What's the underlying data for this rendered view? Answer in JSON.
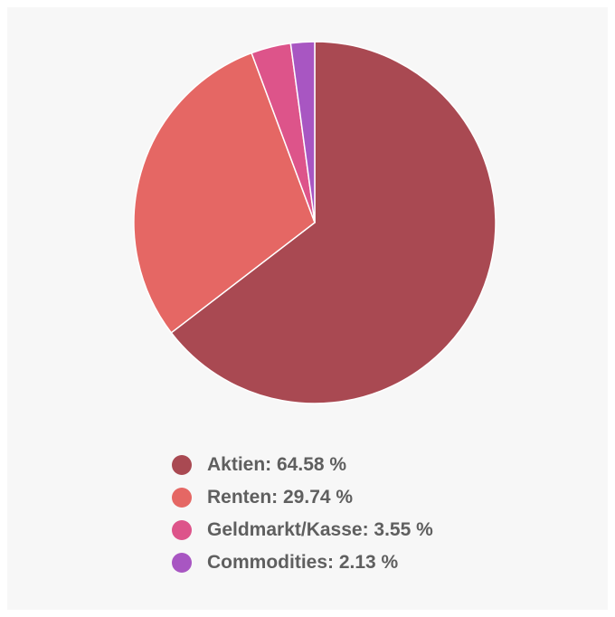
{
  "chart_data": {
    "type": "pie",
    "title": "",
    "legend_position": "bottom",
    "slices": [
      {
        "label": "Aktien",
        "value": 64.58,
        "color": "#a94952",
        "legend_text": "Aktien: 64.58 %"
      },
      {
        "label": "Renten",
        "value": 29.74,
        "color": "#e56764",
        "legend_text": "Renten: 29.74 %"
      },
      {
        "label": "Geldmarkt/Kasse",
        "value": 3.55,
        "color": "#dd548a",
        "legend_text": "Geldmarkt/Kasse: 3.55 %"
      },
      {
        "label": "Commodities",
        "value": 2.13,
        "color": "#a856c2",
        "legend_text": "Commodities: 2.13 %"
      }
    ]
  }
}
